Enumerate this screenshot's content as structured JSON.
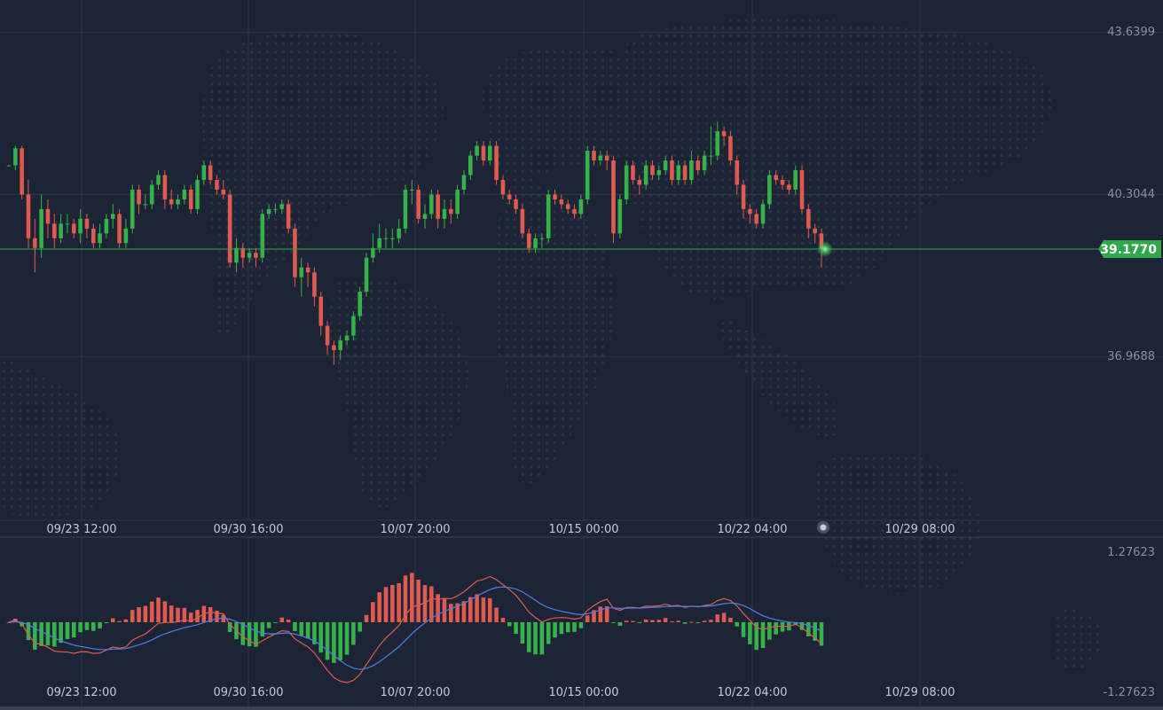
{
  "colors": {
    "background": "#1d2436",
    "grid": "#2f3649",
    "up": "#35b34a",
    "down": "#e05a4f",
    "current_line": "#2ea84a",
    "macd_line": "#4a7fe6",
    "signal_line": "#e05a4f",
    "price_tag_bg": "#2ea84a"
  },
  "chart_data": [
    {
      "type": "candlestick",
      "title": "",
      "y_ticks": [
        "43.6399",
        "40.3044",
        "36.9688"
      ],
      "ylim": [
        33.6,
        44.3
      ],
      "x_ticks": [
        "09/23 12:00",
        "09/30 16:00",
        "10/07 20:00",
        "10/15 00:00",
        "10/22 04:00",
        "10/29 08:00"
      ],
      "current_price": "39.1770",
      "candles": [
        [
          40.9,
          40.9,
          40.9,
          40.9
        ],
        [
          40.9,
          41.25,
          41.3,
          40.8
        ],
        [
          41.25,
          40.3,
          41.3,
          40.2
        ],
        [
          40.3,
          39.4,
          40.6,
          39.2
        ],
        [
          39.4,
          39.2,
          39.8,
          38.7
        ],
        [
          39.2,
          40.0,
          40.3,
          39.0
        ],
        [
          40.0,
          39.7,
          40.2,
          39.4
        ],
        [
          39.7,
          39.4,
          39.9,
          39.2
        ],
        [
          39.4,
          39.7,
          39.9,
          39.3
        ],
        [
          39.7,
          39.7,
          39.9,
          39.5
        ],
        [
          39.7,
          39.5,
          39.8,
          39.4
        ],
        [
          39.5,
          39.8,
          40.0,
          39.3
        ],
        [
          39.8,
          39.6,
          39.9,
          39.4
        ],
        [
          39.6,
          39.3,
          39.7,
          39.2
        ],
        [
          39.3,
          39.5,
          39.7,
          39.2
        ],
        [
          39.5,
          39.8,
          39.9,
          39.4
        ],
        [
          39.8,
          39.9,
          40.1,
          39.6
        ],
        [
          39.9,
          39.3,
          40.0,
          39.2
        ],
        [
          39.3,
          39.6,
          39.8,
          39.2
        ],
        [
          39.6,
          40.4,
          40.5,
          39.5
        ],
        [
          40.4,
          40.1,
          40.5,
          39.9
        ],
        [
          40.1,
          40.1,
          40.3,
          40.0
        ],
        [
          40.1,
          40.5,
          40.6,
          40.0
        ],
        [
          40.5,
          40.7,
          40.8,
          40.4
        ],
        [
          40.7,
          40.2,
          40.8,
          40.0
        ],
        [
          40.2,
          40.1,
          40.4,
          40.0
        ],
        [
          40.1,
          40.2,
          40.3,
          40.0
        ],
        [
          40.2,
          40.4,
          40.5,
          40.1
        ],
        [
          40.4,
          40.0,
          40.5,
          39.9
        ],
        [
          40.0,
          40.6,
          40.7,
          39.9
        ],
        [
          40.6,
          40.9,
          41.0,
          40.5
        ],
        [
          40.9,
          40.6,
          41.0,
          40.5
        ],
        [
          40.6,
          40.4,
          40.7,
          40.3
        ],
        [
          40.4,
          40.3,
          40.6,
          40.2
        ],
        [
          40.3,
          38.9,
          40.4,
          38.8
        ],
        [
          38.9,
          39.2,
          39.4,
          38.7
        ],
        [
          39.2,
          39.0,
          39.3,
          38.8
        ],
        [
          39.0,
          39.1,
          39.2,
          38.9
        ],
        [
          39.1,
          39.0,
          39.2,
          38.8
        ],
        [
          39.0,
          39.9,
          40.0,
          38.9
        ],
        [
          39.9,
          40.0,
          40.1,
          39.8
        ],
        [
          40.0,
          40.0,
          40.1,
          39.9
        ],
        [
          40.0,
          40.1,
          40.2,
          39.9
        ],
        [
          40.1,
          39.6,
          40.2,
          39.5
        ],
        [
          39.6,
          38.6,
          39.7,
          38.4
        ],
        [
          38.6,
          38.8,
          39.0,
          38.2
        ],
        [
          38.8,
          38.7,
          38.9,
          38.4
        ],
        [
          38.7,
          38.2,
          38.8,
          38.0
        ],
        [
          38.2,
          37.6,
          38.3,
          37.4
        ],
        [
          37.6,
          37.2,
          37.7,
          37.0
        ],
        [
          37.2,
          37.1,
          37.3,
          36.8
        ],
        [
          37.1,
          37.3,
          37.4,
          36.9
        ],
        [
          37.3,
          37.4,
          37.5,
          37.2
        ],
        [
          37.4,
          37.8,
          37.9,
          37.3
        ],
        [
          37.8,
          38.3,
          38.4,
          37.7
        ],
        [
          38.3,
          39.0,
          39.1,
          38.2
        ],
        [
          39.0,
          39.2,
          39.5,
          38.9
        ],
        [
          39.2,
          39.4,
          39.7,
          39.1
        ],
        [
          39.4,
          39.4,
          39.6,
          39.2
        ],
        [
          39.4,
          39.4,
          39.6,
          39.2
        ],
        [
          39.4,
          39.6,
          39.8,
          39.3
        ],
        [
          39.6,
          40.4,
          40.5,
          39.5
        ],
        [
          40.4,
          40.4,
          40.6,
          40.1
        ],
        [
          40.4,
          39.8,
          40.5,
          39.7
        ],
        [
          39.8,
          39.9,
          40.1,
          39.6
        ],
        [
          39.9,
          40.3,
          40.4,
          39.8
        ],
        [
          40.3,
          39.8,
          40.4,
          39.6
        ],
        [
          39.8,
          40.0,
          40.2,
          39.6
        ],
        [
          40.0,
          39.9,
          40.2,
          39.7
        ],
        [
          39.9,
          40.4,
          40.5,
          39.8
        ],
        [
          40.4,
          40.7,
          40.8,
          40.3
        ],
        [
          40.7,
          41.1,
          41.2,
          40.6
        ],
        [
          41.1,
          41.3,
          41.4,
          41.0
        ],
        [
          41.3,
          41.0,
          41.4,
          40.9
        ],
        [
          41.0,
          41.3,
          41.4,
          40.9
        ],
        [
          41.3,
          40.6,
          41.4,
          40.5
        ],
        [
          40.6,
          40.3,
          40.7,
          40.2
        ],
        [
          40.3,
          40.2,
          40.4,
          40.1
        ],
        [
          40.2,
          40.0,
          40.3,
          39.9
        ],
        [
          40.0,
          39.5,
          40.1,
          39.4
        ],
        [
          39.5,
          39.2,
          39.6,
          39.1
        ],
        [
          39.2,
          39.4,
          39.5,
          39.1
        ],
        [
          39.4,
          39.4,
          39.5,
          39.2
        ],
        [
          39.4,
          40.3,
          40.4,
          39.3
        ],
        [
          40.3,
          40.2,
          40.4,
          40.1
        ],
        [
          40.2,
          40.1,
          40.3,
          40.0
        ],
        [
          40.1,
          40.0,
          40.2,
          39.9
        ],
        [
          40.0,
          39.9,
          40.1,
          39.8
        ],
        [
          39.9,
          40.2,
          40.3,
          39.8
        ],
        [
          40.2,
          41.2,
          41.3,
          40.1
        ],
        [
          41.2,
          41.0,
          41.3,
          40.9
        ],
        [
          41.0,
          41.1,
          41.2,
          40.9
        ],
        [
          41.1,
          41.0,
          41.2,
          40.8
        ],
        [
          41.0,
          39.5,
          41.1,
          39.3
        ],
        [
          39.5,
          40.2,
          40.3,
          39.4
        ],
        [
          40.2,
          40.9,
          41.0,
          40.1
        ],
        [
          40.9,
          40.6,
          41.0,
          40.5
        ],
        [
          40.6,
          40.5,
          40.7,
          40.3
        ],
        [
          40.5,
          40.9,
          41.0,
          40.4
        ],
        [
          40.9,
          40.7,
          41.0,
          40.6
        ],
        [
          40.7,
          40.8,
          40.9,
          40.6
        ],
        [
          40.8,
          41.0,
          41.1,
          40.7
        ],
        [
          41.0,
          40.6,
          41.1,
          40.5
        ],
        [
          40.6,
          40.9,
          41.0,
          40.5
        ],
        [
          40.9,
          40.6,
          41.0,
          40.5
        ],
        [
          40.6,
          41.0,
          41.2,
          40.5
        ],
        [
          41.0,
          40.8,
          41.1,
          40.7
        ],
        [
          40.8,
          41.1,
          41.2,
          40.7
        ],
        [
          41.1,
          41.1,
          41.7,
          40.9
        ],
        [
          41.1,
          41.6,
          41.8,
          41.0
        ],
        [
          41.6,
          41.5,
          41.7,
          41.3
        ],
        [
          41.5,
          41.0,
          41.6,
          40.9
        ],
        [
          41.0,
          40.5,
          41.1,
          40.3
        ],
        [
          40.5,
          40.0,
          40.6,
          39.8
        ],
        [
          40.0,
          39.9,
          40.1,
          39.7
        ],
        [
          39.9,
          39.7,
          40.0,
          39.6
        ],
        [
          39.7,
          40.1,
          40.2,
          39.6
        ],
        [
          40.1,
          40.7,
          40.8,
          40.0
        ],
        [
          40.7,
          40.6,
          40.8,
          40.5
        ],
        [
          40.6,
          40.5,
          40.7,
          40.4
        ],
        [
          40.5,
          40.4,
          40.6,
          40.3
        ],
        [
          40.4,
          40.8,
          40.9,
          40.3
        ],
        [
          40.8,
          40.0,
          40.9,
          39.9
        ],
        [
          40.0,
          39.6,
          40.1,
          39.4
        ],
        [
          39.6,
          39.5,
          39.7,
          39.3
        ],
        [
          39.5,
          39.18,
          39.6,
          38.8
        ]
      ]
    },
    {
      "type": "macd",
      "y_ticks": [
        "1.27623",
        "-1.27623"
      ],
      "ylim": [
        -1.55,
        1.55
      ],
      "x_ticks": [
        "09/23 12:00",
        "09/30 16:00",
        "10/07 20:00",
        "10/15 00:00",
        "10/22 04:00",
        "10/29 08:00"
      ]
    }
  ]
}
